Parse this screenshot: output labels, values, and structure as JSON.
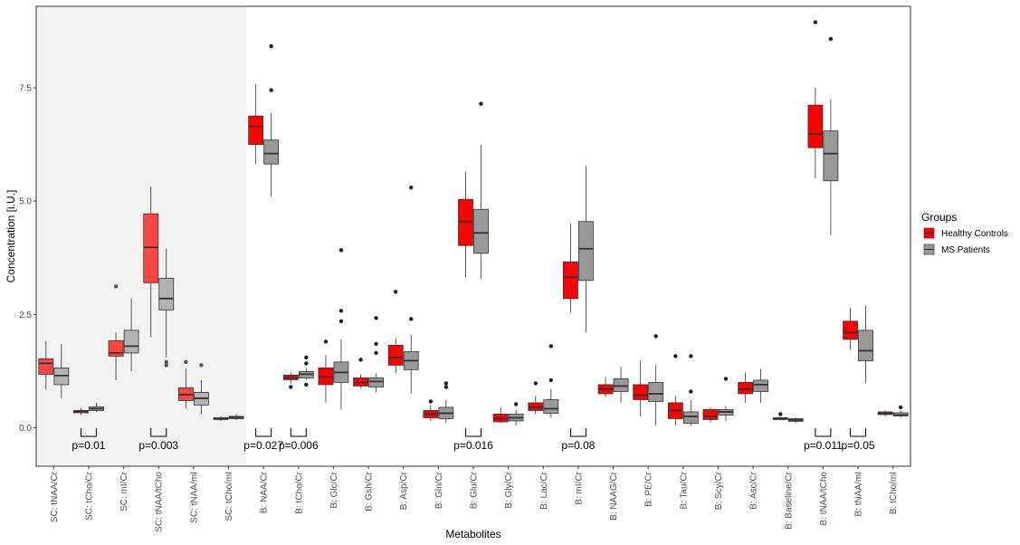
{
  "chart_data": {
    "type": "boxplot",
    "title": "",
    "xlabel": "Metabolites",
    "ylabel": "Concentration [i.U.]",
    "ylim": [
      -0.85,
      9.3
    ],
    "yticks": [
      0.0,
      2.5,
      5.0,
      7.5
    ],
    "ytick_labels": [
      "0.0",
      "2.5",
      "5.0",
      "7.5"
    ],
    "shaded_section": {
      "first_category": 0,
      "last_category": 5,
      "color": "#f2f2f2"
    },
    "legend": {
      "title": "Groups",
      "position": "right",
      "entries": [
        {
          "name": "Healthy Controls",
          "color": "#ff0000"
        },
        {
          "name": "MS Patients",
          "color": "#999999"
        }
      ]
    },
    "categories": [
      "SC: tNAA/Cr",
      "SC: tCho/Cr",
      "SC: mI/Cr",
      "SC: tNAA/tCho",
      "SC: tNAA/mI",
      "SC: tCho/mI",
      "B: NAA/Cr",
      "B: tCho/Cr",
      "B: Glc/Cr",
      "B: Gsh/Cr",
      "B: Asp/Cr",
      "B: Gln/Cr",
      "B: Glu/Cr",
      "B: Gly/Cr",
      "B: Lac/Cr",
      "B: mI/Cr",
      "B: NAAG/Cr",
      "B: PE/Cr",
      "B: Tau/Cr",
      "B: Scy/Cr",
      "B: Asc/Cr",
      "B: Baseline/Cr",
      "B: tNAA/tCho",
      "B: tNAA/mI",
      "B: tCho/mI"
    ],
    "series": [
      {
        "name": "Healthy Controls",
        "boxes": [
          {
            "min": 0.85,
            "q1": 1.18,
            "median": 1.42,
            "q3": 1.52,
            "max": 1.92,
            "outliers": []
          },
          {
            "min": 0.28,
            "q1": 0.33,
            "median": 0.36,
            "q3": 0.38,
            "max": 0.43,
            "outliers": []
          },
          {
            "min": 1.05,
            "q1": 1.58,
            "median": 1.65,
            "q3": 1.92,
            "max": 2.1,
            "outliers": [
              3.12
            ]
          },
          {
            "min": 2.0,
            "q1": 3.2,
            "median": 3.98,
            "q3": 4.72,
            "max": 5.32,
            "outliers": []
          },
          {
            "min": 0.42,
            "q1": 0.6,
            "median": 0.73,
            "q3": 0.88,
            "max": 1.3,
            "outliers": [
              1.45
            ]
          },
          {
            "min": 0.15,
            "q1": 0.18,
            "median": 0.2,
            "q3": 0.22,
            "max": 0.25,
            "outliers": []
          },
          {
            "min": 5.82,
            "q1": 6.25,
            "median": 6.65,
            "q3": 6.88,
            "max": 7.58,
            "outliers": []
          },
          {
            "min": 0.98,
            "q1": 1.06,
            "median": 1.1,
            "q3": 1.16,
            "max": 1.22,
            "outliers": [
              0.9
            ]
          },
          {
            "min": 0.55,
            "q1": 0.95,
            "median": 1.12,
            "q3": 1.32,
            "max": 1.6,
            "outliers": [
              1.9
            ]
          },
          {
            "min": 0.88,
            "q1": 0.92,
            "median": 1.0,
            "q3": 1.1,
            "max": 1.18,
            "outliers": [
              1.5
            ]
          },
          {
            "min": 1.2,
            "q1": 1.38,
            "median": 1.55,
            "q3": 1.82,
            "max": 1.98,
            "outliers": [
              3.0
            ]
          },
          {
            "min": 0.15,
            "q1": 0.22,
            "median": 0.3,
            "q3": 0.38,
            "max": 0.5,
            "outliers": [
              0.58
            ]
          },
          {
            "min": 3.32,
            "q1": 4.02,
            "median": 4.55,
            "q3": 5.04,
            "max": 5.65,
            "outliers": []
          },
          {
            "min": 0.1,
            "q1": 0.13,
            "median": 0.2,
            "q3": 0.3,
            "max": 0.45,
            "outliers": []
          },
          {
            "min": 0.3,
            "q1": 0.38,
            "median": 0.45,
            "q3": 0.55,
            "max": 0.7,
            "outliers": [
              0.98
            ]
          },
          {
            "min": 2.55,
            "q1": 2.85,
            "median": 3.32,
            "q3": 3.66,
            "max": 4.5,
            "outliers": []
          },
          {
            "min": 0.68,
            "q1": 0.75,
            "median": 0.85,
            "q3": 0.95,
            "max": 1.12,
            "outliers": []
          },
          {
            "min": 0.25,
            "q1": 0.62,
            "median": 0.72,
            "q3": 0.95,
            "max": 1.48,
            "outliers": []
          },
          {
            "min": 0.05,
            "q1": 0.2,
            "median": 0.38,
            "q3": 0.55,
            "max": 0.7,
            "outliers": [
              1.58
            ]
          },
          {
            "min": 0.12,
            "q1": 0.18,
            "median": 0.25,
            "q3": 0.4,
            "max": 0.45,
            "outliers": []
          },
          {
            "min": 0.55,
            "q1": 0.75,
            "median": 0.85,
            "q3": 1.0,
            "max": 1.22,
            "outliers": []
          },
          {
            "min": 0.16,
            "q1": 0.18,
            "median": 0.2,
            "q3": 0.22,
            "max": 0.24,
            "outliers": [
              0.3
            ]
          },
          {
            "min": 5.5,
            "q1": 6.18,
            "median": 6.48,
            "q3": 7.12,
            "max": 7.5,
            "outliers": [
              8.95
            ]
          },
          {
            "min": 1.72,
            "q1": 1.95,
            "median": 2.1,
            "q3": 2.35,
            "max": 2.65,
            "outliers": []
          },
          {
            "min": 0.25,
            "q1": 0.29,
            "median": 0.32,
            "q3": 0.35,
            "max": 0.38,
            "outliers": []
          }
        ]
      },
      {
        "name": "MS Patients",
        "boxes": [
          {
            "min": 0.65,
            "q1": 0.95,
            "median": 1.15,
            "q3": 1.32,
            "max": 1.85,
            "outliers": []
          },
          {
            "min": 0.35,
            "q1": 0.38,
            "median": 0.42,
            "q3": 0.46,
            "max": 0.55,
            "outliers": []
          },
          {
            "min": 1.25,
            "q1": 1.65,
            "median": 1.8,
            "q3": 2.15,
            "max": 2.85,
            "outliers": []
          },
          {
            "min": 1.55,
            "q1": 2.6,
            "median": 2.85,
            "q3": 3.3,
            "max": 3.95,
            "outliers": [
              1.38,
              1.45
            ]
          },
          {
            "min": 0.3,
            "q1": 0.5,
            "median": 0.65,
            "q3": 0.78,
            "max": 1.05,
            "outliers": [
              1.38
            ]
          },
          {
            "min": 0.17,
            "q1": 0.2,
            "median": 0.23,
            "q3": 0.25,
            "max": 0.3,
            "outliers": []
          },
          {
            "min": 5.1,
            "q1": 5.82,
            "median": 6.05,
            "q3": 6.35,
            "max": 6.95,
            "outliers": [
              7.45,
              8.42
            ]
          },
          {
            "min": 1.05,
            "q1": 1.1,
            "median": 1.18,
            "q3": 1.24,
            "max": 1.32,
            "outliers": [
              0.95,
              1.42,
              1.55
            ]
          },
          {
            "min": 0.4,
            "q1": 1.0,
            "median": 1.22,
            "q3": 1.45,
            "max": 1.95,
            "outliers": [
              2.35,
              2.58,
              3.92
            ]
          },
          {
            "min": 0.78,
            "q1": 0.9,
            "median": 1.02,
            "q3": 1.1,
            "max": 1.2,
            "outliers": [
              1.65,
              1.85,
              2.42
            ]
          },
          {
            "min": 0.75,
            "q1": 1.28,
            "median": 1.48,
            "q3": 1.68,
            "max": 2.05,
            "outliers": [
              2.4,
              5.3
            ]
          },
          {
            "min": 0.1,
            "q1": 0.2,
            "median": 0.32,
            "q3": 0.45,
            "max": 0.62,
            "outliers": [
              0.9,
              0.98
            ]
          },
          {
            "min": 3.28,
            "q1": 3.85,
            "median": 4.3,
            "q3": 4.82,
            "max": 6.25,
            "outliers": [
              7.15
            ]
          },
          {
            "min": 0.05,
            "q1": 0.15,
            "median": 0.22,
            "q3": 0.3,
            "max": 0.4,
            "outliers": [
              0.52
            ]
          },
          {
            "min": 0.22,
            "q1": 0.32,
            "median": 0.42,
            "q3": 0.62,
            "max": 0.85,
            "outliers": [
              1.05,
              1.8
            ]
          },
          {
            "min": 2.1,
            "q1": 3.25,
            "median": 3.95,
            "q3": 4.55,
            "max": 5.78,
            "outliers": []
          },
          {
            "min": 0.55,
            "q1": 0.8,
            "median": 0.92,
            "q3": 1.08,
            "max": 1.35,
            "outliers": []
          },
          {
            "min": 0.05,
            "q1": 0.58,
            "median": 0.75,
            "q3": 1.0,
            "max": 1.38,
            "outliers": [
              2.02
            ]
          },
          {
            "min": 0.05,
            "q1": 0.1,
            "median": 0.25,
            "q3": 0.35,
            "max": 0.62,
            "outliers": [
              0.8,
              1.58
            ]
          },
          {
            "min": 0.15,
            "q1": 0.28,
            "median": 0.35,
            "q3": 0.4,
            "max": 0.48,
            "outliers": [
              1.08
            ]
          },
          {
            "min": 0.55,
            "q1": 0.8,
            "median": 0.95,
            "q3": 1.05,
            "max": 1.3,
            "outliers": []
          },
          {
            "min": 0.1,
            "q1": 0.14,
            "median": 0.17,
            "q3": 0.2,
            "max": 0.23,
            "outliers": []
          },
          {
            "min": 4.25,
            "q1": 5.45,
            "median": 6.05,
            "q3": 6.55,
            "max": 7.25,
            "outliers": [
              8.58
            ]
          },
          {
            "min": 0.98,
            "q1": 1.48,
            "median": 1.7,
            "q3": 2.15,
            "max": 2.7,
            "outliers": []
          },
          {
            "min": 0.22,
            "q1": 0.26,
            "median": 0.28,
            "q3": 0.33,
            "max": 0.38,
            "outliers": [
              0.45
            ]
          }
        ]
      }
    ],
    "annotations": [
      {
        "category_index": 1,
        "text": "p=0.01"
      },
      {
        "category_index": 3,
        "text": "p=0.003"
      },
      {
        "category_index": 6,
        "text": "p=0.027"
      },
      {
        "category_index": 7,
        "text": "p=0.006"
      },
      {
        "category_index": 12,
        "text": "p=0.016"
      },
      {
        "category_index": 15,
        "text": "p=0.08"
      },
      {
        "category_index": 22,
        "text": "p=0.011"
      },
      {
        "category_index": 23,
        "text": "p=0.05"
      }
    ]
  }
}
